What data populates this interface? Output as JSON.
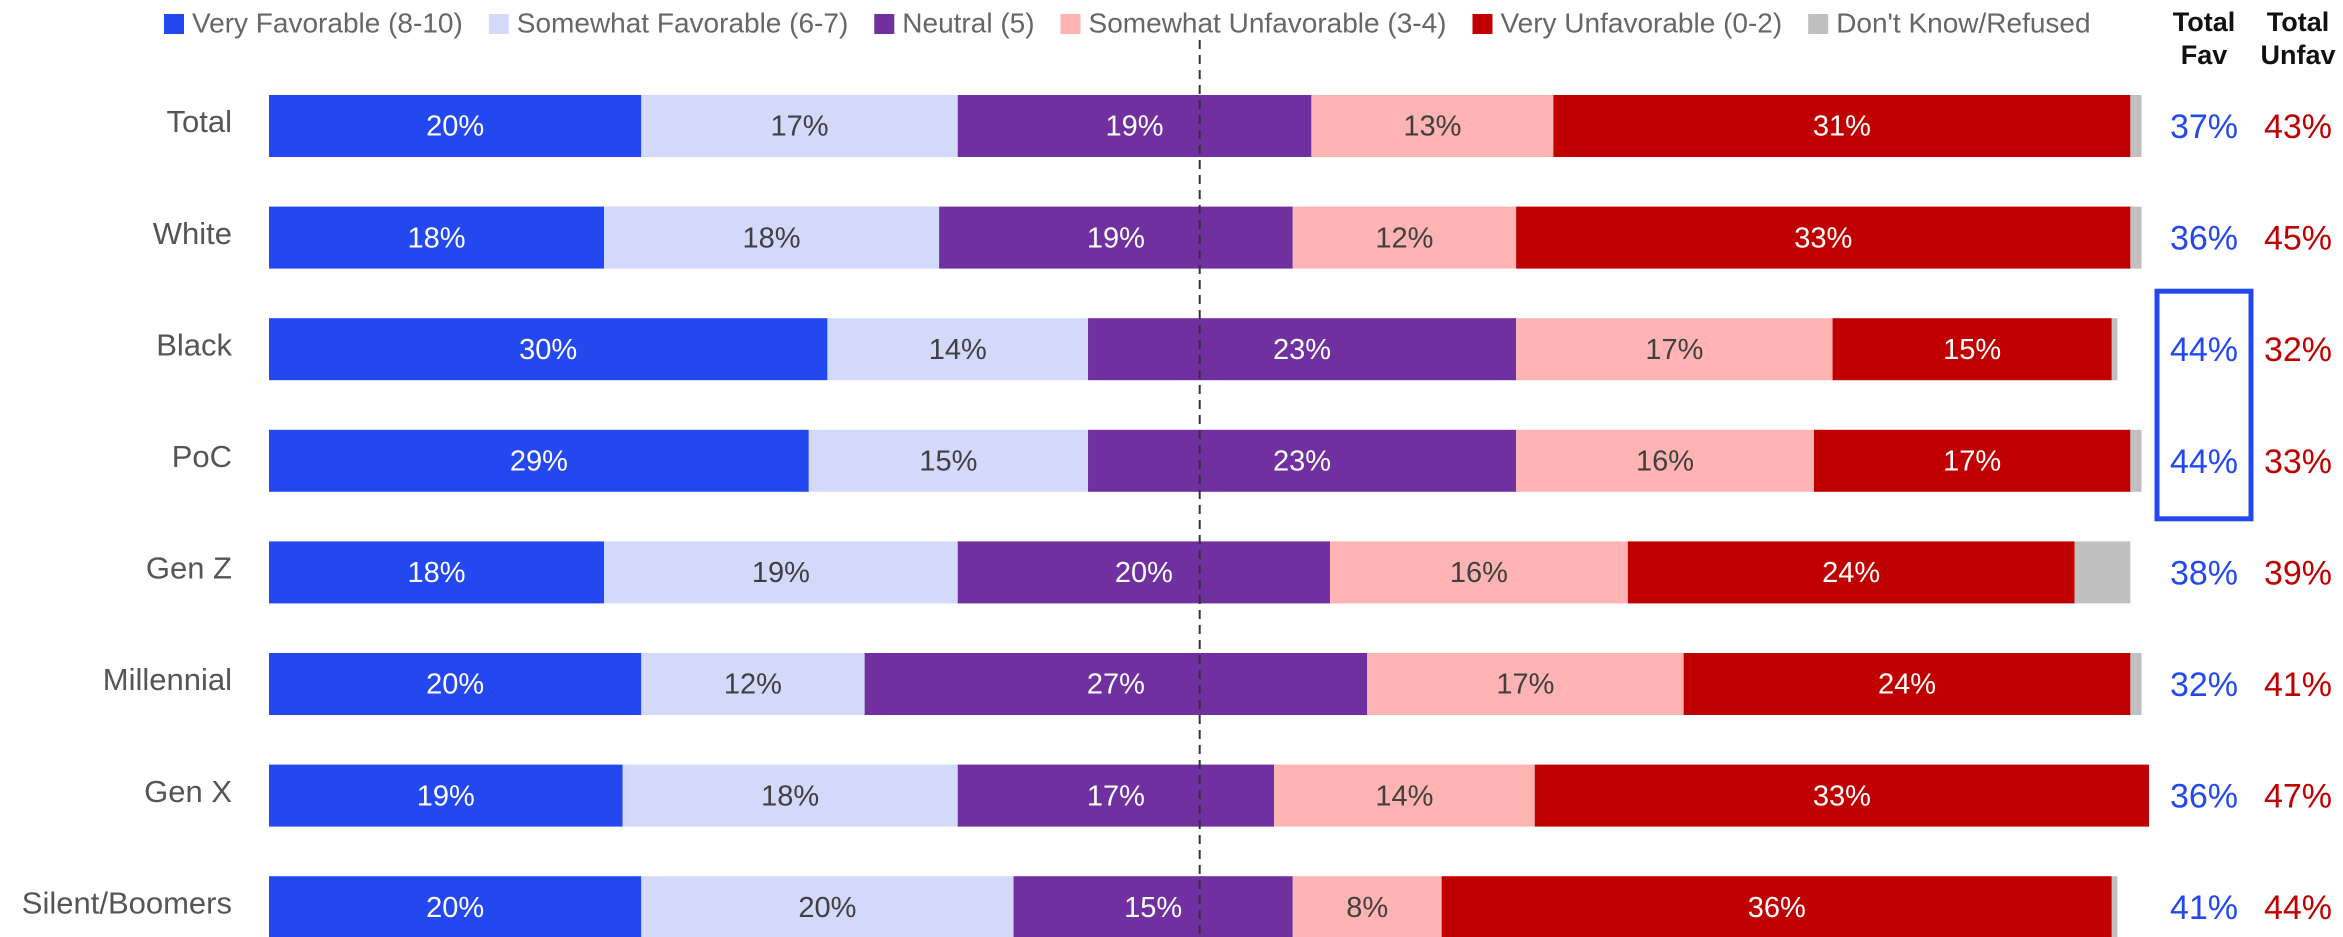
{
  "chart_data": {
    "type": "stacked_barh",
    "categories": [
      "Total",
      "White",
      "Black",
      "PoC",
      "Gen Z",
      "Millennial",
      "Gen X",
      "Silent/Boomers"
    ],
    "series": [
      {
        "name": "Very Favorable (8-10)",
        "color": "#2448f0",
        "label_color": "#ffffff",
        "values": [
          20,
          18,
          30,
          29,
          18,
          20,
          19,
          20
        ],
        "value_labels": [
          "20%",
          "18%",
          "30%",
          "29%",
          "18%",
          "20%",
          "19%",
          "20%"
        ]
      },
      {
        "name": "Somewhat Favorable (6-7)",
        "color": "#d3d9fb",
        "label_color": "#404040",
        "values": [
          17,
          18,
          14,
          15,
          19,
          12,
          18,
          20
        ],
        "value_labels": [
          "17%",
          "18%",
          "14%",
          "15%",
          "19%",
          "12%",
          "18%",
          "20%"
        ]
      },
      {
        "name": "Neutral (5)",
        "color": "#7030a0",
        "label_color": "#ffffff",
        "values": [
          19,
          19,
          23,
          23,
          20,
          27,
          17,
          15
        ],
        "value_labels": [
          "19%",
          "19%",
          "23%",
          "23%",
          "20%",
          "27%",
          "17%",
          "15%"
        ]
      },
      {
        "name": "Somewhat Unfavorable (3-4)",
        "color": "#ffb3b3",
        "label_color": "#404040",
        "values": [
          13,
          12,
          17,
          16,
          16,
          17,
          14,
          8
        ],
        "value_labels": [
          "13%",
          "12%",
          "17%",
          "16%",
          "16%",
          "17%",
          "14%",
          "8%"
        ]
      },
      {
        "name": "Very Unfavorable (0-2)",
        "color": "#c00000",
        "label_color": "#ffffff",
        "values": [
          31,
          33,
          15,
          17,
          24,
          24,
          33,
          36
        ],
        "value_labels": [
          "31%",
          "33%",
          "15%",
          "17%",
          "24%",
          "24%",
          "33%",
          "36%"
        ]
      },
      {
        "name": "Don't Know/Refused",
        "color": "#c0c0c0",
        "values": [
          0.6,
          0.6,
          0.3,
          0.6,
          3,
          0.6,
          0,
          0.3
        ]
      }
    ],
    "xlim": [
      0,
      101
    ],
    "reference_line": 50,
    "fav_header": [
      "Total",
      "Fav"
    ],
    "unfav_header": [
      "Total",
      "Unfav"
    ],
    "fav_color": "#2448f0",
    "unfav_color": "#c00000",
    "total_fav": [
      37,
      36,
      44,
      44,
      38,
      32,
      36,
      41
    ],
    "total_fav_labels": [
      "37%",
      "36%",
      "44%",
      "44%",
      "38%",
      "32%",
      "36%",
      "41%"
    ],
    "total_unfav": [
      43,
      45,
      32,
      33,
      39,
      41,
      47,
      44
    ],
    "total_unfav_labels": [
      "43%",
      "45%",
      "32%",
      "33%",
      "39%",
      "41%",
      "47%",
      "44%"
    ]
  }
}
